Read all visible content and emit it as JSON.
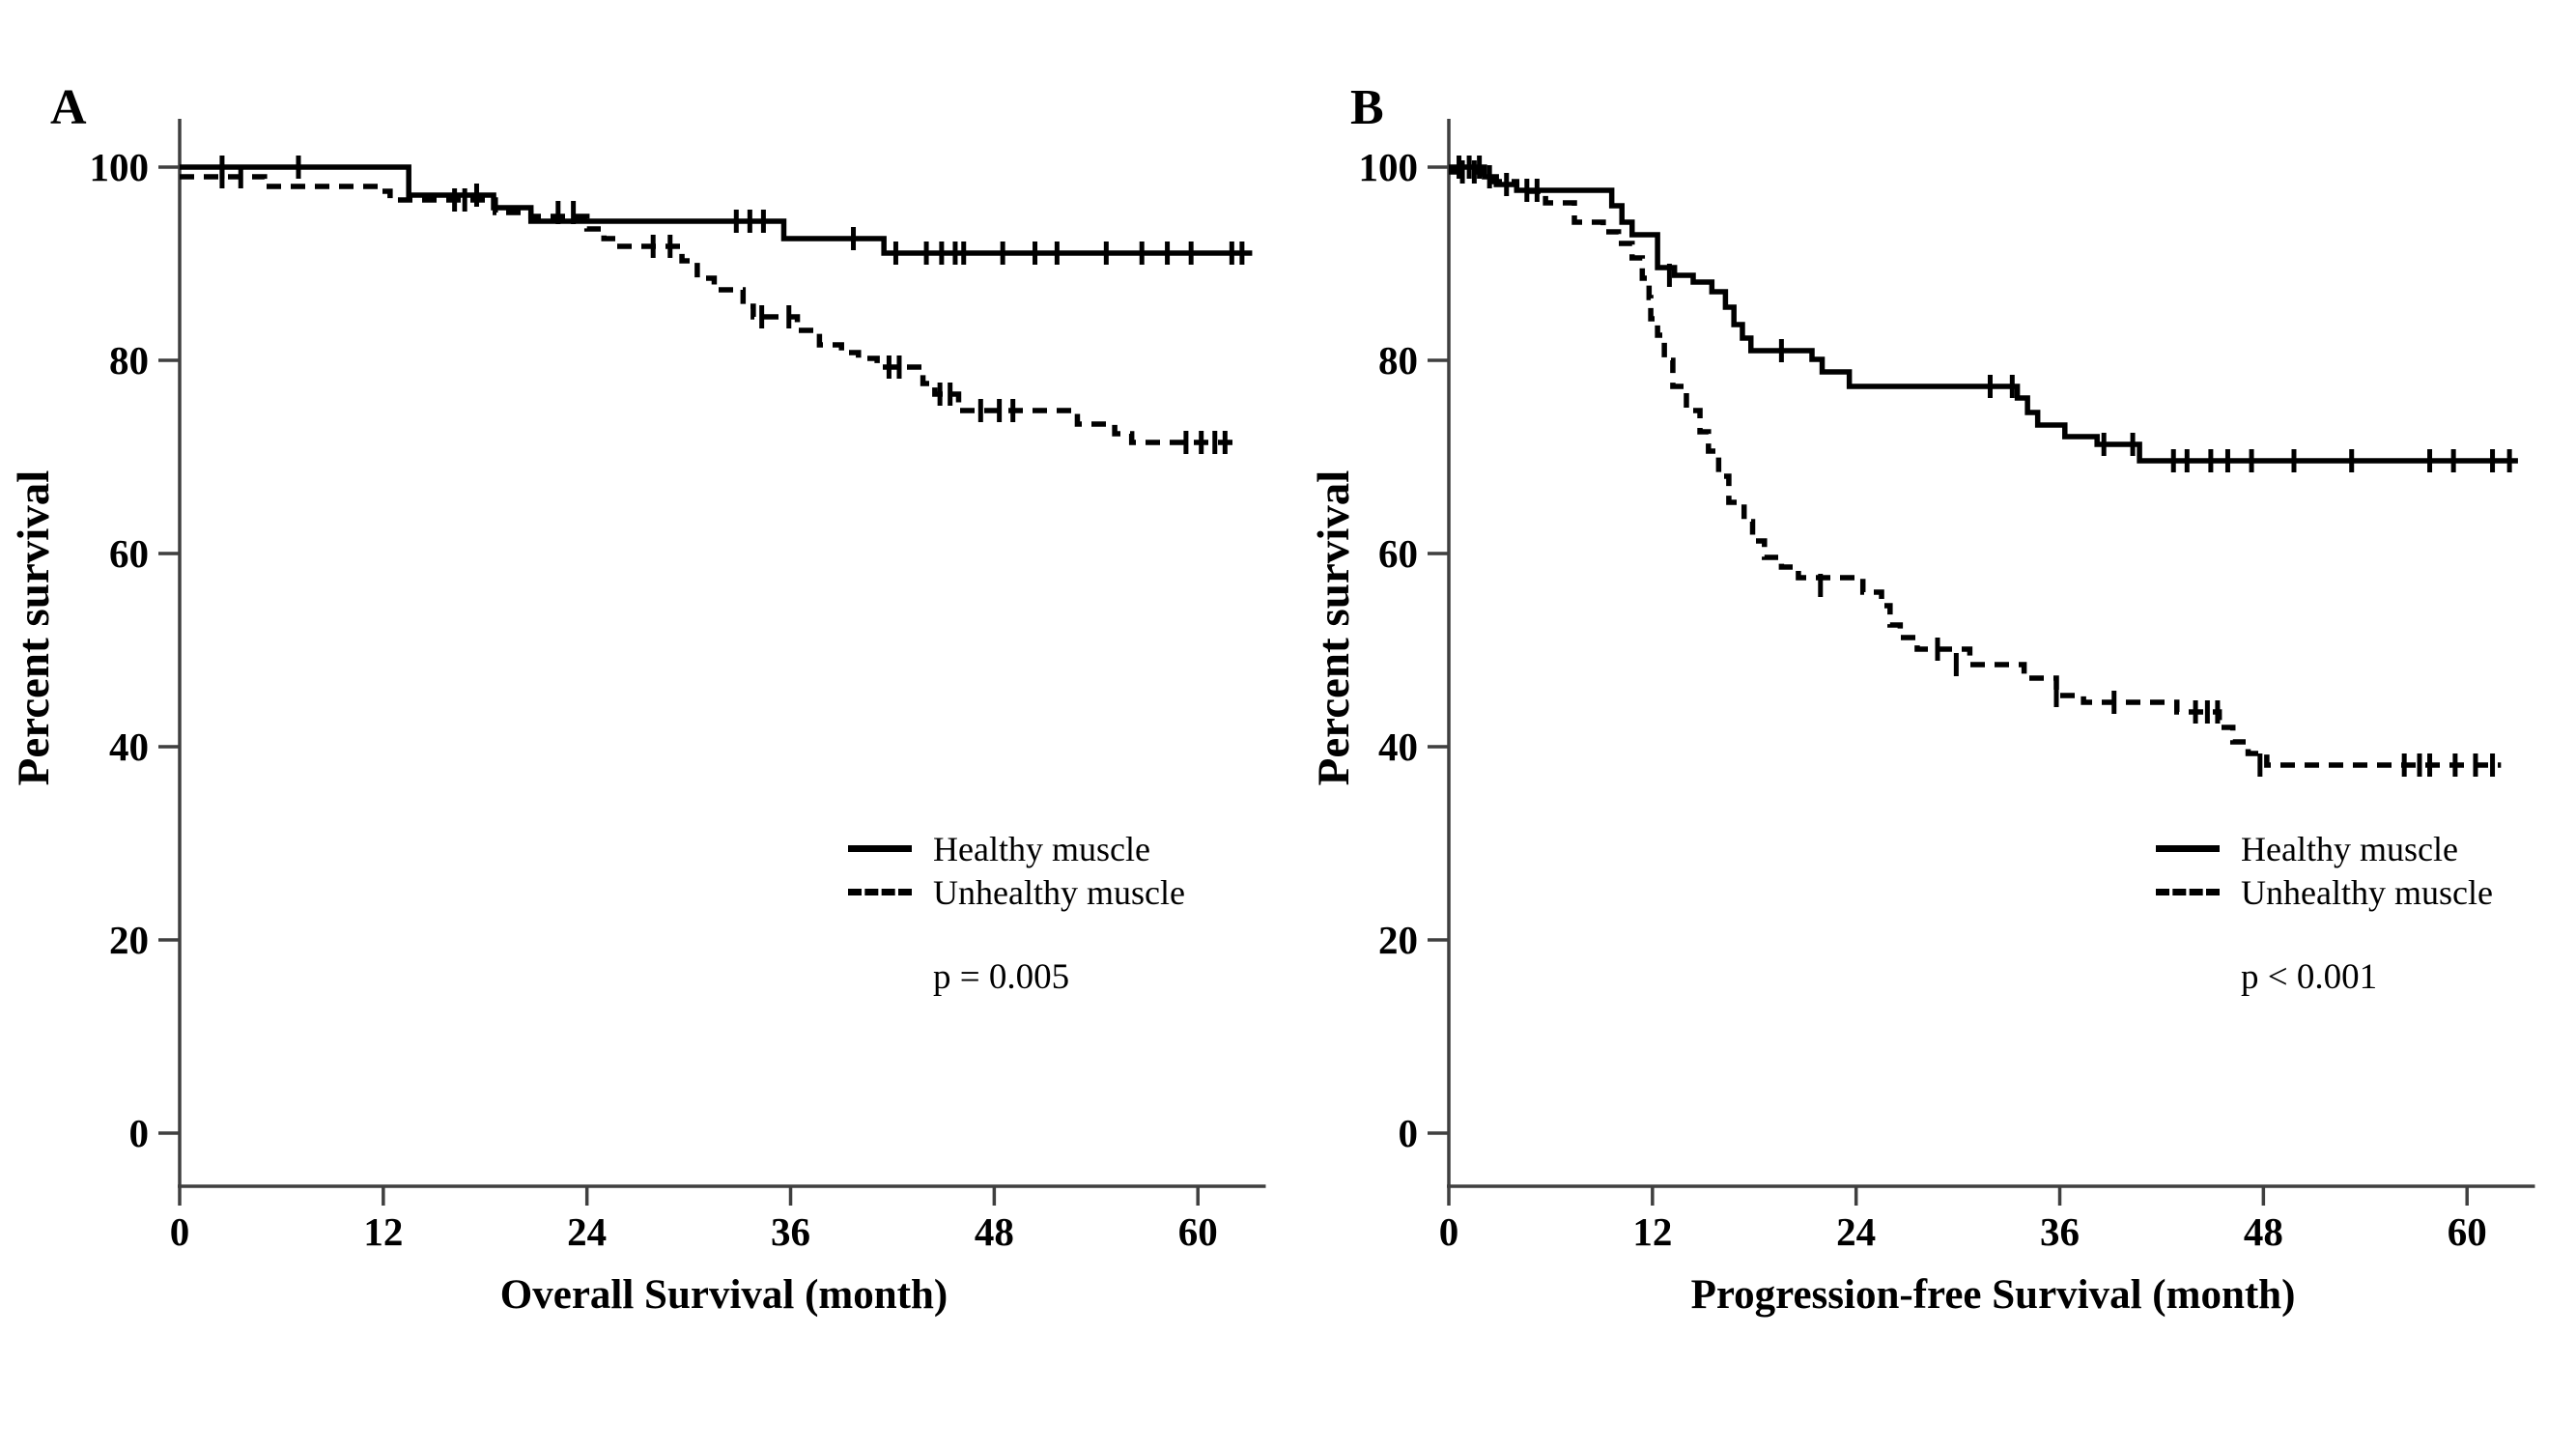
{
  "figure": {
    "background": "#ffffff",
    "curve_color": "#000000",
    "axis_color": "#3f3f3f"
  },
  "chart_data": [
    {
      "type": "line",
      "subtype": "kaplan-meier-step",
      "panel_label": "A",
      "xlabel": "Overall Survival (month)",
      "ylabel": "Percent survival",
      "annotation": "p = 0.005",
      "xlim": [
        0,
        64
      ],
      "ylim": [
        0,
        100
      ],
      "x_ticks": [
        0,
        12,
        24,
        36,
        48,
        60
      ],
      "y_ticks": [
        0,
        20,
        40,
        60,
        80,
        100
      ],
      "grid": false,
      "legend_position": "right-center",
      "series": [
        {
          "name": "Healthy muscle",
          "line_style": "solid",
          "color": "#000000",
          "points": [
            [
              0,
              100
            ],
            [
              13.5,
              97.1
            ],
            [
              18.5,
              95.8
            ],
            [
              20.7,
              94.4
            ],
            [
              35.6,
              92.6
            ],
            [
              41.5,
              91.1
            ],
            [
              63.2,
              91.1
            ]
          ],
          "censor_marks": [
            [
              2.5,
              100
            ],
            [
              7,
              100
            ],
            [
              17.5,
              97.1
            ],
            [
              32.8,
              94.4
            ],
            [
              33.6,
              94.4
            ],
            [
              34.4,
              94.4
            ],
            [
              39.7,
              92.6
            ],
            [
              42.2,
              91.1
            ],
            [
              44,
              91.1
            ],
            [
              44.9,
              91.1
            ],
            [
              45.7,
              91.1
            ],
            [
              46.2,
              91.1
            ],
            [
              48.5,
              91.1
            ],
            [
              50.4,
              91.1
            ],
            [
              51.7,
              91.1
            ],
            [
              54.6,
              91.1
            ],
            [
              56.7,
              91.1
            ],
            [
              58.2,
              91.1
            ],
            [
              59.6,
              91.1
            ],
            [
              62,
              91.1
            ],
            [
              62.6,
              91.1
            ]
          ]
        },
        {
          "name": "Unhealthy muscle",
          "line_style": "dashed",
          "color": "#000000",
          "points": [
            [
              0,
              99
            ],
            [
              5,
              98
            ],
            [
              11.8,
              97.5
            ],
            [
              12.4,
              96.6
            ],
            [
              18.6,
              95.3
            ],
            [
              20.7,
              94.9
            ],
            [
              24,
              93.6
            ],
            [
              25,
              92.6
            ],
            [
              25.7,
              91.8
            ],
            [
              29.6,
              90.3
            ],
            [
              30.5,
              88.5
            ],
            [
              31.5,
              87.3
            ],
            [
              33.2,
              85.6
            ],
            [
              33.8,
              84.5
            ],
            [
              36.4,
              83.1
            ],
            [
              37.7,
              81.6
            ],
            [
              39,
              80.8
            ],
            [
              40,
              80.2
            ],
            [
              41.1,
              79.3
            ],
            [
              43.8,
              77.6
            ],
            [
              44.5,
              76.5
            ],
            [
              45.9,
              74.8
            ],
            [
              52.9,
              73.4
            ],
            [
              55.1,
              72.4
            ],
            [
              56.1,
              71.5
            ],
            [
              62.5,
              71.5
            ]
          ],
          "censor_marks": [
            [
              2.5,
              99
            ],
            [
              3.6,
              99
            ],
            [
              16.2,
              96.6
            ],
            [
              16.8,
              96.6
            ],
            [
              22.3,
              95.3
            ],
            [
              23.2,
              95.3
            ],
            [
              27.9,
              91.8
            ],
            [
              28.9,
              91.8
            ],
            [
              34.3,
              84.5
            ],
            [
              35.9,
              84.5
            ],
            [
              41.8,
              79.3
            ],
            [
              42.4,
              79.3
            ],
            [
              44.8,
              76.5
            ],
            [
              45.4,
              76.5
            ],
            [
              47.2,
              74.8
            ],
            [
              48.3,
              74.8
            ],
            [
              49.1,
              74.8
            ],
            [
              59.3,
              71.5
            ],
            [
              60.2,
              71.5
            ],
            [
              61,
              71.5
            ],
            [
              61.6,
              71.5
            ]
          ]
        }
      ]
    },
    {
      "type": "line",
      "subtype": "kaplan-meier-step",
      "panel_label": "B",
      "xlabel": "Progression-free Survival (month)",
      "ylabel": "Percent survival",
      "annotation": "p < 0.001",
      "xlim": [
        0,
        64
      ],
      "ylim": [
        0,
        100
      ],
      "x_ticks": [
        0,
        12,
        24,
        36,
        48,
        60
      ],
      "y_ticks": [
        0,
        20,
        40,
        60,
        80,
        100
      ],
      "grid": false,
      "legend_position": "right-center",
      "series": [
        {
          "name": "Healthy muscle",
          "line_style": "solid",
          "color": "#000000",
          "points": [
            [
              0,
              100
            ],
            [
              2.1,
              99
            ],
            [
              2.8,
              98.2
            ],
            [
              4,
              97.6
            ],
            [
              9.6,
              96
            ],
            [
              10.2,
              94.3
            ],
            [
              10.8,
              93
            ],
            [
              12.3,
              89.6
            ],
            [
              13.3,
              88.8
            ],
            [
              14.4,
              88.1
            ],
            [
              15.5,
              87.1
            ],
            [
              16.3,
              85.5
            ],
            [
              16.8,
              83.7
            ],
            [
              17.3,
              82.3
            ],
            [
              17.8,
              81
            ],
            [
              21.4,
              80.1
            ],
            [
              22,
              78.8
            ],
            [
              23.6,
              77.3
            ],
            [
              33.5,
              76.1
            ],
            [
              34.1,
              74.6
            ],
            [
              34.7,
              73.3
            ],
            [
              36.3,
              72.1
            ],
            [
              38.2,
              71.3
            ],
            [
              40.7,
              69.6
            ],
            [
              63,
              69.6
            ]
          ],
          "censor_marks": [
            [
              0.6,
              100
            ],
            [
              1.2,
              100
            ],
            [
              1.8,
              100
            ],
            [
              2.4,
              99
            ],
            [
              3.4,
              98.2
            ],
            [
              4.6,
              97.6
            ],
            [
              5.2,
              97.6
            ],
            [
              13,
              88.8
            ],
            [
              19.6,
              81
            ],
            [
              31.9,
              77.3
            ],
            [
              33.2,
              77.3
            ],
            [
              38.6,
              71.3
            ],
            [
              40.3,
              71.3
            ],
            [
              42.7,
              69.6
            ],
            [
              43.5,
              69.6
            ],
            [
              44.9,
              69.6
            ],
            [
              45.9,
              69.6
            ],
            [
              47.3,
              69.6
            ],
            [
              49.8,
              69.6
            ],
            [
              53.2,
              69.6
            ],
            [
              57.8,
              69.6
            ],
            [
              59.2,
              69.6
            ],
            [
              61.5,
              69.6
            ],
            [
              62.5,
              69.6
            ]
          ]
        },
        {
          "name": "Unhealthy muscle",
          "line_style": "dashed",
          "color": "#000000",
          "points": [
            [
              0,
              99.5
            ],
            [
              2,
              98.5
            ],
            [
              4,
              97.5
            ],
            [
              5.7,
              96.3
            ],
            [
              7.4,
              94.3
            ],
            [
              9.1,
              93.3
            ],
            [
              10,
              92.1
            ],
            [
              10.8,
              90.6
            ],
            [
              11.4,
              88.5
            ],
            [
              11.8,
              86.5
            ],
            [
              11.9,
              84.3
            ],
            [
              12.3,
              82.6
            ],
            [
              12.7,
              80
            ],
            [
              13.2,
              77.3
            ],
            [
              14,
              74.8
            ],
            [
              14.8,
              72.6
            ],
            [
              15.3,
              70.6
            ],
            [
              15.9,
              68
            ],
            [
              16.5,
              65.3
            ],
            [
              17.4,
              63.3
            ],
            [
              17.9,
              61.3
            ],
            [
              18.6,
              59.6
            ],
            [
              19.6,
              58.6
            ],
            [
              20.6,
              57.5
            ],
            [
              24.4,
              56
            ],
            [
              25.5,
              54.6
            ],
            [
              26,
              52.6
            ],
            [
              26.6,
              51.3
            ],
            [
              27.6,
              50.1
            ],
            [
              30.7,
              48.5
            ],
            [
              33.9,
              47.1
            ],
            [
              35.8,
              45.3
            ],
            [
              37.4,
              44.6
            ],
            [
              42.9,
              43.6
            ],
            [
              45.4,
              42
            ],
            [
              46.2,
              40.5
            ],
            [
              47.1,
              39.3
            ],
            [
              48.2,
              38.1
            ],
            [
              62,
              38.1
            ]
          ],
          "censor_marks": [
            [
              0.8,
              99.5
            ],
            [
              1.5,
              99.5
            ],
            [
              21.9,
              56.7
            ],
            [
              28.8,
              50.1
            ],
            [
              29.9,
              48.5
            ],
            [
              35.8,
              45.3
            ],
            [
              39.2,
              44.6
            ],
            [
              44,
              43.6
            ],
            [
              44.7,
              43.6
            ],
            [
              45.3,
              43.6
            ],
            [
              47.8,
              38.1
            ],
            [
              56.3,
              38.1
            ],
            [
              57.2,
              38.1
            ],
            [
              57.8,
              38.1
            ],
            [
              59.3,
              38.1
            ],
            [
              60.5,
              38.1
            ],
            [
              61.5,
              38.1
            ]
          ]
        }
      ]
    }
  ]
}
